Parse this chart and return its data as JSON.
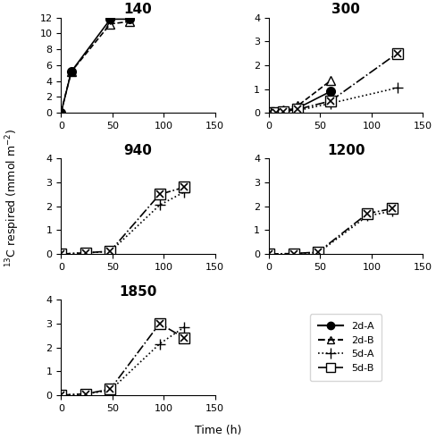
{
  "title_fontsize": 11,
  "axis_fontsize": 9,
  "tick_fontsize": 8,
  "ylabel": "$^{13}$C respired (mmol m$^{-2}$)",
  "xlabel": "Time (h)",
  "stations": [
    "140",
    "300",
    "940",
    "1200",
    "1850"
  ],
  "ylims": {
    "140": [
      0,
      12
    ],
    "300": [
      0,
      4
    ],
    "940": [
      0,
      4
    ],
    "1200": [
      0,
      4
    ],
    "1850": [
      0,
      4
    ]
  },
  "xlim": [
    0,
    150
  ],
  "xticks": [
    0,
    50,
    100,
    150
  ],
  "yticks_140": [
    0,
    2,
    4,
    6,
    8,
    10,
    12
  ],
  "yticks_std": [
    0,
    1,
    2,
    3,
    4
  ],
  "series": {
    "2d-A": {
      "marker": "o",
      "linestyle": "-",
      "fillstyle": "full",
      "color": "black",
      "markersize": 7,
      "linewidth": 1.2,
      "label": "2d-A"
    },
    "2d-B": {
      "marker": "^",
      "linestyle": "--",
      "fillstyle": "none",
      "color": "black",
      "markersize": 7,
      "linewidth": 1.2,
      "label": "2d-B"
    },
    "5d-A": {
      "marker": "+",
      "linestyle": ":",
      "fillstyle": "full",
      "color": "black",
      "markersize": 9,
      "linewidth": 1.2,
      "label": "5d-A"
    },
    "5d-B": {
      "marker": "s",
      "linestyle": "-.",
      "fillstyle": "none",
      "color": "black",
      "markersize": 8,
      "linewidth": 1.2,
      "label": "5d-B"
    }
  },
  "data": {
    "140": {
      "2d-A": {
        "x": [
          0,
          10,
          48,
          67
        ],
        "y": [
          0.0,
          5.2,
          11.8,
          11.8
        ]
      },
      "2d-B": {
        "x": [
          0,
          10,
          48,
          67
        ],
        "y": [
          0.1,
          5.2,
          11.2,
          11.5
        ]
      },
      "5d-A": {
        "x": [],
        "y": []
      },
      "5d-B": {
        "x": [],
        "y": []
      }
    },
    "300": {
      "2d-A": {
        "x": [
          0,
          7,
          14,
          28,
          60
        ],
        "y": [
          0.0,
          0.05,
          0.1,
          0.2,
          0.9
        ]
      },
      "2d-B": {
        "x": [
          0,
          7,
          14,
          28,
          60
        ],
        "y": [
          0.0,
          0.05,
          0.12,
          0.3,
          1.35
        ]
      },
      "5d-A": {
        "x": [
          0,
          7,
          14,
          28,
          60,
          125
        ],
        "y": [
          0.0,
          0.02,
          0.05,
          0.1,
          0.4,
          1.05
        ]
      },
      "5d-B": {
        "x": [
          0,
          7,
          14,
          28,
          60,
          125
        ],
        "y": [
          0.0,
          0.02,
          0.06,
          0.15,
          0.5,
          2.5
        ]
      }
    },
    "940": {
      "2d-A": {
        "x": [],
        "y": []
      },
      "2d-B": {
        "x": [],
        "y": []
      },
      "5d-A": {
        "x": [
          0,
          24,
          48,
          96,
          120
        ],
        "y": [
          0.0,
          0.05,
          0.1,
          2.05,
          2.6
        ]
      },
      "5d-B": {
        "x": [
          0,
          24,
          48,
          96,
          120
        ],
        "y": [
          0.0,
          0.05,
          0.12,
          2.5,
          2.8
        ]
      }
    },
    "1200": {
      "2d-A": {
        "x": [],
        "y": []
      },
      "2d-B": {
        "x": [],
        "y": []
      },
      "5d-A": {
        "x": [
          0,
          24,
          48,
          96,
          120
        ],
        "y": [
          0.0,
          0.02,
          0.05,
          1.6,
          1.8
        ]
      },
      "5d-B": {
        "x": [
          0,
          24,
          48,
          96,
          120
        ],
        "y": [
          0.0,
          0.02,
          0.08,
          1.7,
          1.9
        ]
      }
    },
    "1850": {
      "2d-A": {
        "x": [],
        "y": []
      },
      "2d-B": {
        "x": [],
        "y": []
      },
      "5d-A": {
        "x": [
          0,
          24,
          48,
          96,
          120
        ],
        "y": [
          0.0,
          0.05,
          0.2,
          2.15,
          2.85
        ]
      },
      "5d-B": {
        "x": [
          0,
          24,
          48,
          96,
          120
        ],
        "y": [
          0.0,
          0.05,
          0.25,
          3.0,
          2.4
        ]
      }
    }
  }
}
